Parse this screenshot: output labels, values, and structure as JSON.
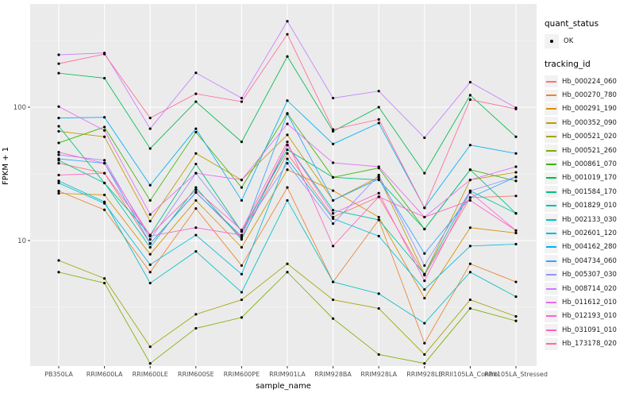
{
  "legend": {
    "quant_status_title": "quant_status",
    "quant_status_items": [
      {
        "label": "OK",
        "marker": "point-icon"
      }
    ],
    "tracking_title": "tracking_id"
  },
  "colors": {
    "panel_background": "#EBEBEB",
    "grid_major": "#FFFFFF",
    "grid_minor": "#FFFFFF",
    "axis_text": "#4D4D4D",
    "point_color": "#000000",
    "legend_key_background": "#F2F2F2"
  },
  "chart_data": {
    "type": "line",
    "title": "",
    "xlabel": "sample_name",
    "ylabel": "FPKM + 1",
    "y_scale": "log10",
    "y_tick_labels": [
      "100",
      "10"
    ],
    "y_tick_values": [
      100,
      10
    ],
    "y_minor_values": [
      316.23,
      31.62,
      3.162
    ],
    "ylim": [
      1.1,
      560
    ],
    "grid": "on",
    "legend_position": "right",
    "marker": "black-point",
    "categories": [
      "PB350LA",
      "RRIM600LA",
      "RRIM600LE",
      "RRIM600SE",
      "RRIM600PE",
      "RRIM901LA",
      "RRIM928BA",
      "RRIM928LA",
      "RRIM928LE",
      "RRII105LA_Control",
      "RRII105LA_Stressed"
    ],
    "series": [
      {
        "name": "Hb_000224_060",
        "color": "#F8766D",
        "values": [
          38,
          32,
          9.5,
          23,
          10.5,
          45,
          15,
          21.3,
          5.5,
          21,
          21.6
        ]
      },
      {
        "name": "Hb_000270_780",
        "color": "#EA8331",
        "values": [
          23.5,
          17,
          5.8,
          17.4,
          6.5,
          25,
          4.9,
          14.3,
          1.7,
          6.7,
          4.9
        ]
      },
      {
        "name": "Hb_000291_190",
        "color": "#D89000",
        "values": [
          22.6,
          22,
          7.9,
          20,
          8.9,
          34,
          23.7,
          15,
          3.7,
          12.5,
          11.4
        ]
      },
      {
        "name": "Hb_000352_090",
        "color": "#C09B00",
        "values": [
          66,
          60,
          14,
          45,
          28.5,
          62,
          20,
          30,
          5.6,
          28.5,
          32.5
        ]
      },
      {
        "name": "Hb_000521_020",
        "color": "#A3A500",
        "values": [
          7.1,
          5.2,
          1.6,
          2.8,
          3.6,
          6.7,
          3.6,
          3.1,
          1.4,
          3.6,
          2.7
        ]
      },
      {
        "name": "Hb_000521_260",
        "color": "#7CAE00",
        "values": [
          5.8,
          4.8,
          1.2,
          2.2,
          2.65,
          5.8,
          2.6,
          1.4,
          1.2,
          3.1,
          2.5
        ]
      },
      {
        "name": "Hb_000861_070",
        "color": "#39B600",
        "values": [
          54,
          71,
          20,
          65,
          25,
          90,
          29.8,
          35,
          12.2,
          34,
          28
        ]
      },
      {
        "name": "Hb_001019_170",
        "color": "#00BB4E",
        "values": [
          180,
          165,
          49,
          110,
          55,
          240,
          66,
          100,
          32,
          123,
          60
        ]
      },
      {
        "name": "Hb_001584_170",
        "color": "#00BF7D",
        "values": [
          72,
          27,
          11,
          37.5,
          11.7,
          48,
          29.8,
          28.5,
          12.2,
          34,
          16
        ]
      },
      {
        "name": "Hb_001829_010",
        "color": "#00C1A3",
        "values": [
          40,
          27,
          8.9,
          25,
          10.2,
          52,
          16.9,
          14.3,
          5.6,
          23.6,
          16
        ]
      },
      {
        "name": "Hb_002133_030",
        "color": "#00BFC4",
        "values": [
          28,
          19.5,
          4.8,
          8.3,
          4.1,
          20,
          4.9,
          4.0,
          2.4,
          5.8,
          3.8
        ]
      },
      {
        "name": "Hb_002601_120",
        "color": "#00BAE0",
        "values": [
          27,
          19,
          6.6,
          11,
          5.6,
          41,
          14.6,
          10.8,
          4.3,
          9.1,
          9.4
        ]
      },
      {
        "name": "Hb_004162_280",
        "color": "#00B0F6",
        "values": [
          83,
          84,
          26,
          69,
          20,
          112,
          53,
          76,
          17.6,
          52,
          45
        ]
      },
      {
        "name": "Hb_004734_060",
        "color": "#35A2FF",
        "values": [
          41,
          38,
          9.5,
          22.9,
          10.8,
          89,
          20,
          29,
          8,
          21,
          30
        ]
      },
      {
        "name": "Hb_005307_030",
        "color": "#9590FF",
        "values": [
          44,
          40,
          10.2,
          32,
          11.7,
          38,
          13.4,
          31,
          6.5,
          23.6,
          30
        ]
      },
      {
        "name": "Hb_008714_020",
        "color": "#C77CFF",
        "values": [
          247,
          255,
          69,
          181,
          117,
          441,
          117,
          132,
          59,
          154,
          99
        ]
      },
      {
        "name": "Hb_011612_010",
        "color": "#E76BF3",
        "values": [
          101,
          67,
          15.7,
          32,
          28.5,
          75,
          38.3,
          35.8,
          15,
          28.5,
          35.8
        ]
      },
      {
        "name": "Hb_012193_010",
        "color": "#FA62DB",
        "values": [
          46,
          38,
          10.8,
          12.5,
          11,
          52,
          16,
          22.7,
          5,
          23,
          11.9
        ]
      },
      {
        "name": "Hb_031091_010",
        "color": "#FF62BC",
        "values": [
          31,
          32,
          11,
          24,
          12,
          55,
          9.1,
          21.3,
          15,
          20,
          11.9
        ]
      },
      {
        "name": "Hb_173178_020",
        "color": "#FF6A98",
        "values": [
          212,
          250,
          83,
          126,
          110,
          352,
          68,
          81,
          17.6,
          114,
          97
        ]
      }
    ]
  }
}
